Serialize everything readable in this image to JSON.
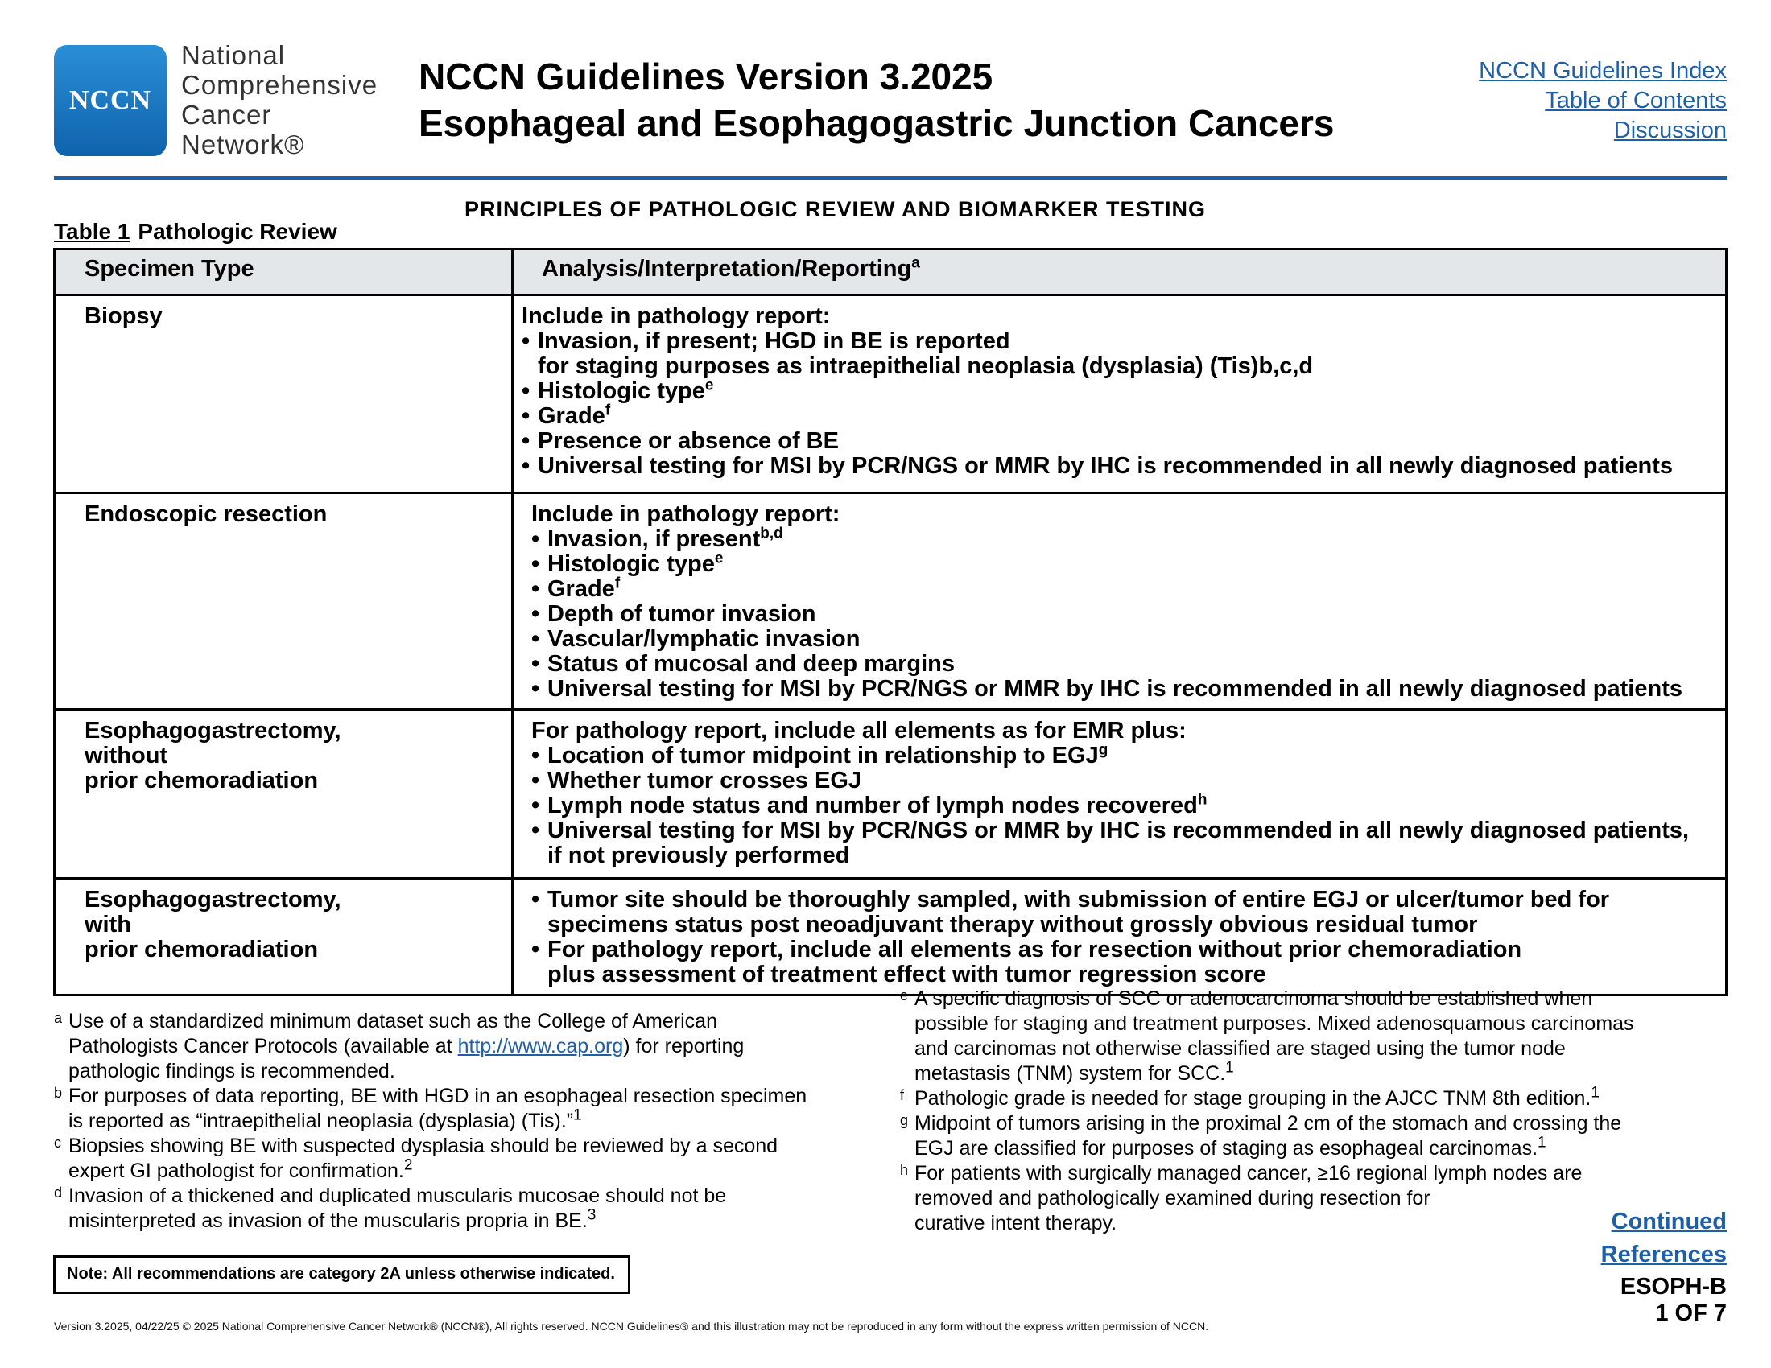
{
  "header": {
    "logo_text": "NCCN",
    "org_lines": [
      "National",
      "Comprehensive",
      "Cancer",
      "Network®"
    ],
    "title_line1": "NCCN Guidelines Version 3.2025",
    "title_line2": "Esophageal and Esophagogastric Junction Cancers",
    "links": [
      "NCCN Guidelines Index",
      "Table of Contents",
      "Discussion"
    ]
  },
  "section_title": "PRINCIPLES OF PATHOLOGIC REVIEW AND BIOMARKER TESTING",
  "table": {
    "caption_number": "Table 1",
    "caption_text": "Pathologic Review",
    "col1_header": "Specimen Type",
    "col2_header": "Analysis/Interpretation/Reporting",
    "col2_header_sup": "a",
    "rows": [
      {
        "specimen": [
          "Biopsy"
        ],
        "lead": "Include in pathology report:",
        "bullets": [
          {
            "text": "Invasion, if present; HGD in BE is reported",
            "cont": "for staging purposes as intraepithelial neoplasia (dysplasia) (Tis)b,c,d"
          },
          {
            "text": "Histologic type",
            "sup": "e"
          },
          {
            "text": "Grade",
            "sup": "f"
          },
          {
            "text": "Presence or absence of BE"
          },
          {
            "text": "Universal testing for MSI by PCR/NGS or MMR by IHC is recommended in all newly diagnosed patients"
          }
        ]
      },
      {
        "specimen": [
          "Endoscopic resection"
        ],
        "lead": "Include in pathology report:",
        "bullets": [
          {
            "text": "Invasion, if present",
            "sup": "b,d"
          },
          {
            "text": "Histologic type",
            "sup": "e"
          },
          {
            "text": "Grade",
            "sup": "f"
          },
          {
            "text": "Depth of tumor invasion"
          },
          {
            "text": "Vascular/lymphatic invasion"
          },
          {
            "text": "Status of mucosal and deep margins"
          },
          {
            "text": "Universal testing for MSI by PCR/NGS or MMR by IHC is recommended in all newly diagnosed patients"
          }
        ]
      },
      {
        "specimen": [
          "Esophagogastrectomy,",
          "without",
          "prior chemoradiation"
        ],
        "lead": "For pathology report, include all elements as for EMR plus:",
        "bullets": [
          {
            "text": "Location of tumor midpoint in relationship to EGJ",
            "sup": "g"
          },
          {
            "text": "Whether tumor crosses EGJ"
          },
          {
            "text": "Lymph node status and number of lymph nodes recovered",
            "sup": "h"
          },
          {
            "text": "Universal testing for MSI by PCR/NGS or MMR by IHC is recommended in all newly diagnosed patients,",
            "cont": "if not previously performed"
          }
        ]
      },
      {
        "specimen": [
          "Esophagogastrectomy,",
          "with",
          "prior chemoradiation"
        ],
        "bullets": [
          {
            "text": "Tumor site should be thoroughly sampled, with submission of entire EGJ or ulcer/tumor bed for",
            "cont": "specimens status post neoadjuvant therapy without grossly obvious residual tumor"
          },
          {
            "text": "For pathology report, include all elements as for resection without prior chemoradiation",
            "cont": "plus assessment of treatment effect with tumor regression score"
          }
        ]
      }
    ]
  },
  "footnotes_left": {
    "a": {
      "letter": "a",
      "pre": "Use of a standardized minimum dataset such as the College of American",
      "l2_pre": "Pathologists Cancer Protocols (available at ",
      "link": "http://www.cap.org",
      "l2_post": ") for reporting",
      "l3": "pathologic findings is recommended."
    },
    "b": {
      "letter": "b",
      "l1": "For purposes of data reporting, BE with HGD in an esophageal resection specimen",
      "l2": "is reported as “intraepithelial neoplasia (dysplasia) (Tis).”",
      "ref": "1"
    },
    "c": {
      "letter": "c",
      "l1": "Biopsies showing BE with suspected dysplasia should be reviewed by a second",
      "l2": "expert GI pathologist for confirmation.",
      "ref": "2"
    },
    "d": {
      "letter": "d",
      "l1": "Invasion of a thickened and duplicated muscularis mucosae should not be",
      "l2": "misinterpreted as invasion of the muscularis propria in BE.",
      "ref": "3"
    }
  },
  "footnotes_right": {
    "e": {
      "letter": "e",
      "l1": "A specific diagnosis of SCC or adenocarcinoma should be established when",
      "l2": "possible for staging and treatment purposes. Mixed adenosquamous carcinomas",
      "l3": "and carcinomas not otherwise classified are staged using the tumor node",
      "l4": "metastasis (TNM) system for SCC.",
      "ref": "1"
    },
    "f": {
      "letter": "f",
      "l1": "Pathologic grade is needed for stage grouping in the AJCC TNM 8th edition.",
      "ref": "1"
    },
    "g": {
      "letter": "g",
      "l1": "Midpoint of tumors arising in the proximal 2 cm of the stomach and crossing the",
      "l2": "EGJ are classified for purposes of staging as esophageal carcinomas.",
      "ref": "1"
    },
    "h": {
      "letter": "h",
      "l1": "For patients with surgically managed cancer, ≥16 regional lymph nodes are",
      "l2": "removed and pathologically examined during resection for",
      "l3": "curative intent therapy."
    }
  },
  "footer": {
    "continued": "Continued",
    "references": "References",
    "page_code": "ESOPH-B",
    "page_of": "1 OF 7",
    "note": "Note: All recommendations are category 2A unless otherwise indicated.",
    "copyright": "Version 3.2025, 04/22/25 © 2025 National Comprehensive Cancer Network® (NCCN®), All rights reserved. NCCN Guidelines® and this illustration may not be reproduced in any form without the express written permission of NCCN."
  }
}
